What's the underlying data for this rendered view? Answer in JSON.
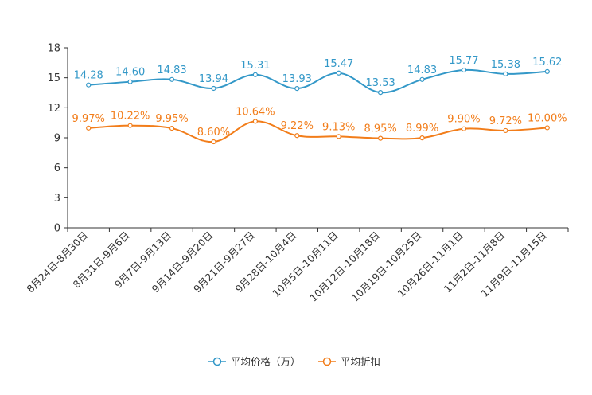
{
  "chart_data": {
    "type": "line",
    "title": "",
    "xlabel": "",
    "ylabel": "",
    "ylim": [
      0,
      18
    ],
    "yticks": [
      0,
      3,
      6,
      9,
      12,
      15,
      18
    ],
    "grid": false,
    "legend_position": "bottom-center",
    "categories": [
      "8月24日-8月30日",
      "8月31日-9月6日",
      "9月7日-9月13日",
      "9月14日-9月20日",
      "9月21日-9月27日",
      "9月28日-10月4日",
      "10月5日-10月11日",
      "10月12日-10月18日",
      "10月19日-10月25日",
      "10月26日-11月1日",
      "11月2日-11月8日",
      "11月9日-11月15日"
    ],
    "series": [
      {
        "name": "平均价格（万）",
        "color": "#3398c8",
        "values": [
          14.28,
          14.6,
          14.83,
          13.94,
          15.31,
          13.93,
          15.47,
          13.53,
          14.83,
          15.77,
          15.38,
          15.62
        ],
        "labels": [
          "14.28",
          "14.60",
          "14.83",
          "13.94",
          "15.31",
          "13.93",
          "15.47",
          "13.53",
          "14.83",
          "15.77",
          "15.38",
          "15.62"
        ]
      },
      {
        "name": "平均折扣",
        "color": "#f27d1a",
        "values": [
          9.97,
          10.22,
          9.95,
          8.6,
          10.64,
          9.22,
          9.13,
          8.95,
          8.99,
          9.9,
          9.72,
          10.0
        ],
        "labels": [
          "9.97%",
          "10.22%",
          "9.95%",
          "8.60%",
          "10.64%",
          "9.22%",
          "9.13%",
          "8.95%",
          "8.99%",
          "9.90%",
          "9.72%",
          "10.00%"
        ]
      }
    ]
  }
}
